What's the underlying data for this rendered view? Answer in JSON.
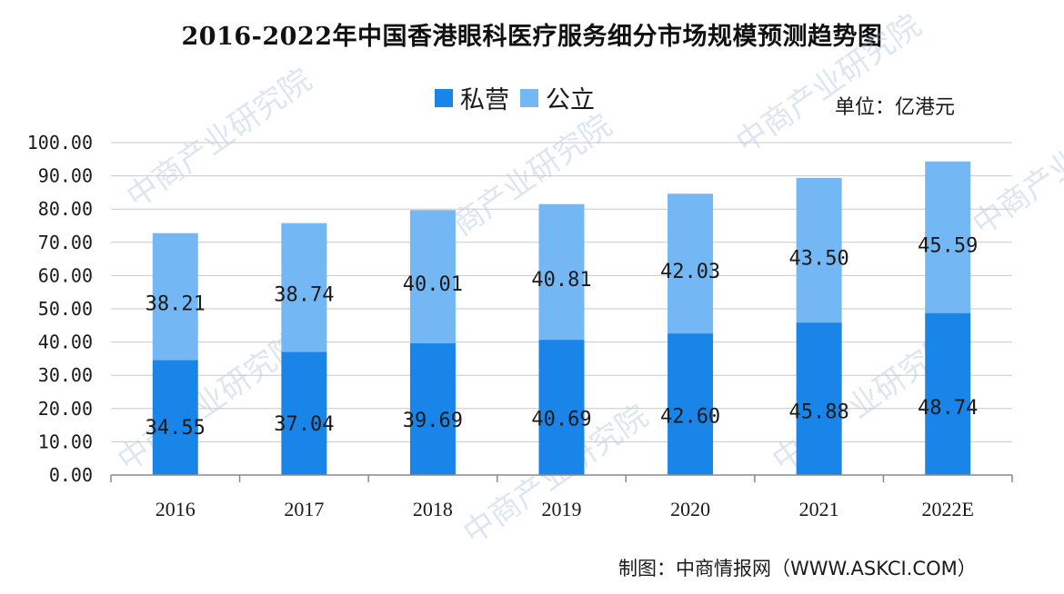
{
  "chart_data": {
    "type": "bar",
    "stacked": true,
    "title": "2016-2022年中国香港眼科医疗服务细分市场规模预测趋势图",
    "unit": "单位：亿港元",
    "source": "制图：中商情报网（WWW.ASKCI.COM）",
    "categories": [
      "2016",
      "2017",
      "2018",
      "2019",
      "2020",
      "2021",
      "2022E"
    ],
    "series": [
      {
        "name": "私营",
        "color": "#1a85e8",
        "values": [
          34.55,
          37.04,
          39.69,
          40.69,
          42.6,
          45.88,
          48.74
        ]
      },
      {
        "name": "公立",
        "color": "#73b8f4",
        "values": [
          38.21,
          38.74,
          40.01,
          40.81,
          42.03,
          43.5,
          45.59
        ]
      }
    ],
    "value_labels": [
      [
        "34.55",
        "37.04",
        "39.69",
        "40.69",
        "42.60",
        "45.88",
        "48.74"
      ],
      [
        "38.21",
        "38.74",
        "40.01",
        "40.81",
        "42.03",
        "43.50",
        "45.59"
      ]
    ],
    "ylim": [
      0,
      100
    ],
    "yticks": [
      0,
      10,
      20,
      30,
      40,
      50,
      60,
      70,
      80,
      90,
      100
    ],
    "ytick_labels": [
      "0.00",
      "10.00",
      "20.00",
      "30.00",
      "40.00",
      "50.00",
      "60.00",
      "70.00",
      "80.00",
      "90.00",
      "100.00"
    ],
    "grid": true,
    "legend_position": "top-center",
    "watermark": "中商产业研究院"
  }
}
